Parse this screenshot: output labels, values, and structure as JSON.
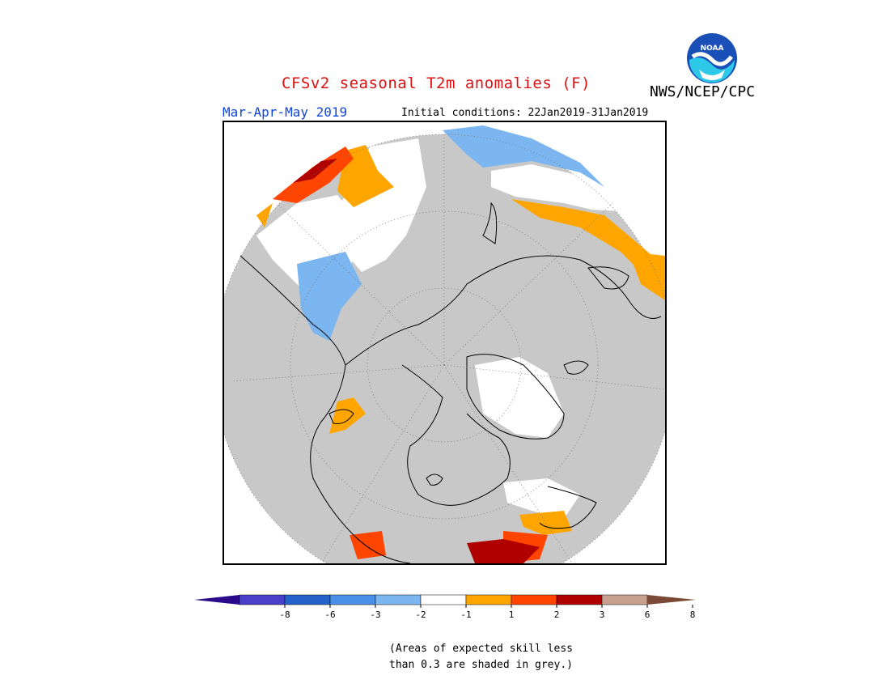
{
  "header": {
    "title": "CFSv2 seasonal T2m anomalies (F)",
    "season": "Mar-Apr-May 2019",
    "initial_conditions": "Initial conditions: 22Jan2019-31Jan2019",
    "agency": "NWS/NCEP/CPC",
    "logo_text": "NOAA"
  },
  "colors": {
    "title": "#dd1111",
    "season": "#1144dd",
    "skill_mask_grey": "#c8c8c8",
    "land_outline": "#000000"
  },
  "legend": {
    "bins": [
      {
        "label": "",
        "color": "#2a0a8a"
      },
      {
        "label": "-8",
        "color": "#4a3fc8"
      },
      {
        "label": "-6",
        "color": "#2462c9"
      },
      {
        "label": "-3",
        "color": "#4a90e8"
      },
      {
        "label": "-2",
        "color": "#7bb6f0"
      },
      {
        "label": "-1",
        "color": "#ffffff"
      },
      {
        "label": "1",
        "color": "#ffa500"
      },
      {
        "label": "2",
        "color": "#ff4500"
      },
      {
        "label": "3",
        "color": "#b00000"
      },
      {
        "label": "6",
        "color": "#c8a090"
      },
      {
        "label": "8",
        "color": "#7a4a36"
      }
    ]
  },
  "note": {
    "line1": "(Areas of expected skill less",
    "line2": "than 0.3 are shaded in grey.)"
  },
  "map": {
    "projection": "polar-stereographic",
    "regions": [
      {
        "name": "anomaly-blue-north",
        "color": "#7bb6f0"
      },
      {
        "name": "anomaly-blue-west",
        "color": "#7bb6f0"
      },
      {
        "name": "anomaly-orange-northeast",
        "color": "#ffa500"
      },
      {
        "name": "anomaly-red-northwest",
        "color": "#ff4500"
      },
      {
        "name": "anomaly-darkred-south",
        "color": "#b00000"
      },
      {
        "name": "anomaly-orange-southeast",
        "color": "#ffa500"
      }
    ]
  }
}
